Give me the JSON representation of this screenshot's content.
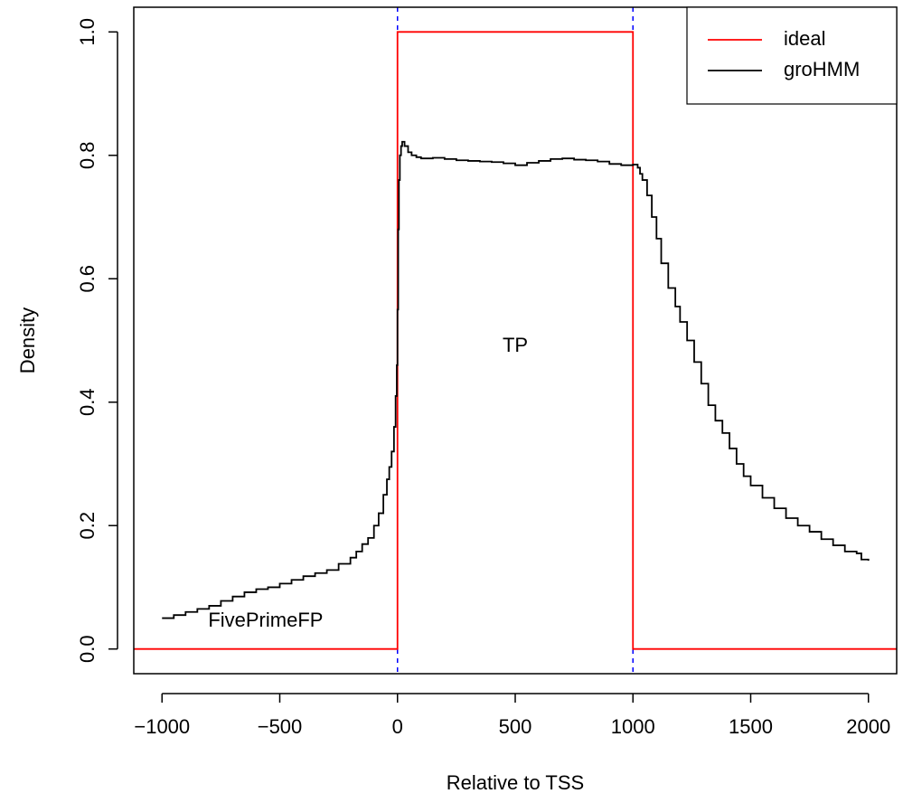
{
  "chart_data": {
    "type": "line",
    "title": "",
    "xlabel": "Relative to TSS",
    "ylabel": "Density",
    "xlim": [
      -1120,
      2120
    ],
    "ylim": [
      -0.04,
      1.04
    ],
    "x_ticks": [
      -1000,
      -500,
      0,
      500,
      1000,
      1500,
      2000
    ],
    "x_tick_labels": [
      "−1000",
      "−500",
      "0",
      "500",
      "1000",
      "1500",
      "2000"
    ],
    "y_ticks": [
      0.0,
      0.2,
      0.4,
      0.6,
      0.8,
      1.0
    ],
    "y_tick_labels": [
      "0.0",
      "0.2",
      "0.4",
      "0.6",
      "0.8",
      "1.0"
    ],
    "grid": false,
    "legend_position": "top-right",
    "vlines": [
      {
        "x": 0,
        "color": "#0000ff",
        "style": "dashed"
      },
      {
        "x": 1000,
        "color": "#0000ff",
        "style": "dashed"
      }
    ],
    "annotations": [
      {
        "text": "TP",
        "x": 500,
        "y": 0.49
      },
      {
        "text": "FivePrimeFP",
        "x": -560,
        "y": 0.045
      }
    ],
    "series": [
      {
        "name": "ideal",
        "color": "#ff0000",
        "step": false,
        "points": [
          [
            -1120,
            0
          ],
          [
            0,
            0
          ],
          [
            0,
            1
          ],
          [
            1000,
            1
          ],
          [
            1000,
            0
          ],
          [
            2120,
            0
          ]
        ]
      },
      {
        "name": "groHMM",
        "color": "#000000",
        "step": true,
        "points": [
          [
            -1000,
            0.05
          ],
          [
            -950,
            0.055
          ],
          [
            -900,
            0.06
          ],
          [
            -850,
            0.065
          ],
          [
            -800,
            0.07
          ],
          [
            -750,
            0.078
          ],
          [
            -700,
            0.085
          ],
          [
            -650,
            0.092
          ],
          [
            -600,
            0.097
          ],
          [
            -550,
            0.1
          ],
          [
            -500,
            0.106
          ],
          [
            -450,
            0.112
          ],
          [
            -400,
            0.118
          ],
          [
            -350,
            0.123
          ],
          [
            -300,
            0.128
          ],
          [
            -250,
            0.138
          ],
          [
            -200,
            0.148
          ],
          [
            -175,
            0.158
          ],
          [
            -150,
            0.17
          ],
          [
            -125,
            0.18
          ],
          [
            -100,
            0.2
          ],
          [
            -80,
            0.22
          ],
          [
            -60,
            0.25
          ],
          [
            -45,
            0.275
          ],
          [
            -35,
            0.295
          ],
          [
            -25,
            0.32
          ],
          [
            -15,
            0.36
          ],
          [
            -8,
            0.41
          ],
          [
            -3,
            0.46
          ],
          [
            0,
            0.55
          ],
          [
            3,
            0.68
          ],
          [
            6,
            0.76
          ],
          [
            10,
            0.8
          ],
          [
            15,
            0.815
          ],
          [
            20,
            0.822
          ],
          [
            30,
            0.815
          ],
          [
            45,
            0.805
          ],
          [
            60,
            0.8
          ],
          [
            80,
            0.797
          ],
          [
            100,
            0.795
          ],
          [
            150,
            0.796
          ],
          [
            200,
            0.794
          ],
          [
            250,
            0.792
          ],
          [
            300,
            0.791
          ],
          [
            350,
            0.79
          ],
          [
            400,
            0.789
          ],
          [
            450,
            0.787
          ],
          [
            500,
            0.784
          ],
          [
            550,
            0.788
          ],
          [
            600,
            0.791
          ],
          [
            650,
            0.794
          ],
          [
            700,
            0.795
          ],
          [
            750,
            0.793
          ],
          [
            800,
            0.792
          ],
          [
            850,
            0.79
          ],
          [
            900,
            0.786
          ],
          [
            950,
            0.784
          ],
          [
            980,
            0.784
          ],
          [
            1000,
            0.785
          ],
          [
            1010,
            0.785
          ],
          [
            1020,
            0.78
          ],
          [
            1030,
            0.77
          ],
          [
            1040,
            0.76
          ],
          [
            1060,
            0.735
          ],
          [
            1080,
            0.7
          ],
          [
            1100,
            0.665
          ],
          [
            1120,
            0.625
          ],
          [
            1150,
            0.585
          ],
          [
            1180,
            0.555
          ],
          [
            1200,
            0.53
          ],
          [
            1230,
            0.5
          ],
          [
            1260,
            0.465
          ],
          [
            1290,
            0.43
          ],
          [
            1320,
            0.395
          ],
          [
            1350,
            0.37
          ],
          [
            1380,
            0.35
          ],
          [
            1410,
            0.325
          ],
          [
            1440,
            0.3
          ],
          [
            1470,
            0.28
          ],
          [
            1500,
            0.265
          ],
          [
            1550,
            0.245
          ],
          [
            1600,
            0.228
          ],
          [
            1650,
            0.212
          ],
          [
            1700,
            0.2
          ],
          [
            1750,
            0.19
          ],
          [
            1800,
            0.178
          ],
          [
            1850,
            0.168
          ],
          [
            1900,
            0.158
          ],
          [
            1950,
            0.155
          ],
          [
            1970,
            0.145
          ],
          [
            2000,
            0.143
          ]
        ]
      }
    ]
  }
}
